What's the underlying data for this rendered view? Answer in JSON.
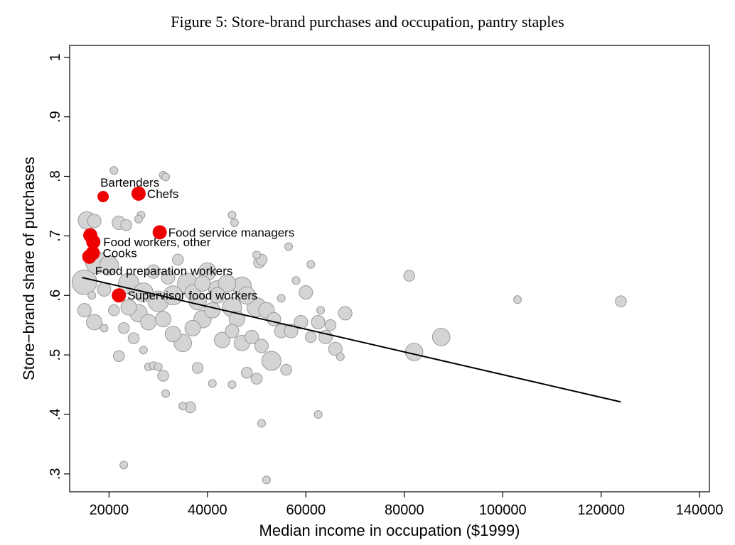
{
  "figure_title": "Figure 5: Store-brand purchases and occupation, pantry staples",
  "colors": {
    "background_points": "#d4d4d4",
    "background_stroke": "#9a9a9a",
    "highlight": "#ee0000",
    "fit_line": "#000000"
  },
  "chart_data": {
    "type": "scatter",
    "title": "Figure 5: Store-brand purchases and occupation, pantry staples",
    "xlabel": "Median income in occupation ($1999)",
    "ylabel": "Store−brand share of purchases",
    "xlim": [
      12000,
      142000
    ],
    "ylim": [
      0.27,
      1.02
    ],
    "xticks": [
      20000,
      40000,
      60000,
      80000,
      100000,
      120000,
      140000
    ],
    "xtick_labels": [
      "20000",
      "40000",
      "60000",
      "80000",
      "100000",
      "120000",
      "140000"
    ],
    "yticks": [
      0.3,
      0.4,
      0.5,
      0.6,
      0.7,
      0.8,
      0.9,
      1.0
    ],
    "ytick_labels": [
      ".3",
      ".4",
      ".5",
      ".6",
      ".7",
      ".8",
      ".9",
      "1"
    ],
    "fit_line": {
      "x": [
        14500,
        124000
      ],
      "y": [
        0.63,
        0.421
      ]
    },
    "background_points": [
      {
        "x": 15500,
        "y": 0.726,
        "w": 5
      },
      {
        "x": 17000,
        "y": 0.725,
        "w": 3
      },
      {
        "x": 21000,
        "y": 0.81,
        "w": 1
      },
      {
        "x": 22000,
        "y": 0.722,
        "w": 3
      },
      {
        "x": 23500,
        "y": 0.718,
        "w": 2
      },
      {
        "x": 26500,
        "y": 0.735,
        "w": 1
      },
      {
        "x": 26000,
        "y": 0.728,
        "w": 1
      },
      {
        "x": 31000,
        "y": 0.802,
        "w": 1
      },
      {
        "x": 31500,
        "y": 0.799,
        "w": 1
      },
      {
        "x": 45000,
        "y": 0.735,
        "w": 1
      },
      {
        "x": 45500,
        "y": 0.722,
        "w": 1
      },
      {
        "x": 50000,
        "y": 0.668,
        "w": 1
      },
      {
        "x": 50500,
        "y": 0.655,
        "w": 2
      },
      {
        "x": 51000,
        "y": 0.66,
        "w": 2
      },
      {
        "x": 56500,
        "y": 0.682,
        "w": 1
      },
      {
        "x": 61000,
        "y": 0.652,
        "w": 1
      },
      {
        "x": 15000,
        "y": 0.622,
        "w": 10
      },
      {
        "x": 17500,
        "y": 0.655,
        "w": 8
      },
      {
        "x": 20000,
        "y": 0.65,
        "w": 6
      },
      {
        "x": 24000,
        "y": 0.62,
        "w": 7
      },
      {
        "x": 27000,
        "y": 0.605,
        "w": 6
      },
      {
        "x": 30000,
        "y": 0.59,
        "w": 7
      },
      {
        "x": 33000,
        "y": 0.6,
        "w": 6
      },
      {
        "x": 36000,
        "y": 0.62,
        "w": 7
      },
      {
        "x": 38000,
        "y": 0.59,
        "w": 5
      },
      {
        "x": 40000,
        "y": 0.64,
        "w": 5
      },
      {
        "x": 42000,
        "y": 0.61,
        "w": 5
      },
      {
        "x": 44000,
        "y": 0.62,
        "w": 5
      },
      {
        "x": 45000,
        "y": 0.58,
        "w": 6
      },
      {
        "x": 47000,
        "y": 0.615,
        "w": 6
      },
      {
        "x": 48000,
        "y": 0.6,
        "w": 5
      },
      {
        "x": 50000,
        "y": 0.58,
        "w": 6
      },
      {
        "x": 52000,
        "y": 0.575,
        "w": 4
      },
      {
        "x": 26000,
        "y": 0.57,
        "w": 5
      },
      {
        "x": 28000,
        "y": 0.555,
        "w": 4
      },
      {
        "x": 31000,
        "y": 0.56,
        "w": 4
      },
      {
        "x": 33000,
        "y": 0.535,
        "w": 4
      },
      {
        "x": 35000,
        "y": 0.52,
        "w": 5
      },
      {
        "x": 37000,
        "y": 0.545,
        "w": 4
      },
      {
        "x": 39000,
        "y": 0.56,
        "w": 5
      },
      {
        "x": 41000,
        "y": 0.575,
        "w": 4
      },
      {
        "x": 43000,
        "y": 0.525,
        "w": 4
      },
      {
        "x": 45000,
        "y": 0.54,
        "w": 3
      },
      {
        "x": 47000,
        "y": 0.52,
        "w": 4
      },
      {
        "x": 49000,
        "y": 0.53,
        "w": 3
      },
      {
        "x": 51000,
        "y": 0.515,
        "w": 3
      },
      {
        "x": 53000,
        "y": 0.49,
        "w": 6
      },
      {
        "x": 55000,
        "y": 0.54,
        "w": 3
      },
      {
        "x": 57000,
        "y": 0.54,
        "w": 3
      },
      {
        "x": 59000,
        "y": 0.555,
        "w": 3
      },
      {
        "x": 61000,
        "y": 0.53,
        "w": 2
      },
      {
        "x": 62500,
        "y": 0.555,
        "w": 3
      },
      {
        "x": 64000,
        "y": 0.53,
        "w": 3
      },
      {
        "x": 65000,
        "y": 0.55,
        "w": 2
      },
      {
        "x": 66000,
        "y": 0.51,
        "w": 3
      },
      {
        "x": 68000,
        "y": 0.57,
        "w": 3
      },
      {
        "x": 63000,
        "y": 0.575,
        "w": 1
      },
      {
        "x": 60000,
        "y": 0.605,
        "w": 3
      },
      {
        "x": 58000,
        "y": 0.625,
        "w": 1
      },
      {
        "x": 55000,
        "y": 0.595,
        "w": 1
      },
      {
        "x": 15000,
        "y": 0.575,
        "w": 3
      },
      {
        "x": 17000,
        "y": 0.555,
        "w": 4
      },
      {
        "x": 19000,
        "y": 0.545,
        "w": 1
      },
      {
        "x": 16500,
        "y": 0.6,
        "w": 1
      },
      {
        "x": 21000,
        "y": 0.575,
        "w": 2
      },
      {
        "x": 22000,
        "y": 0.498,
        "w": 2
      },
      {
        "x": 23000,
        "y": 0.545,
        "w": 2
      },
      {
        "x": 25000,
        "y": 0.528,
        "w": 2
      },
      {
        "x": 27000,
        "y": 0.508,
        "w": 1
      },
      {
        "x": 28000,
        "y": 0.48,
        "w": 1
      },
      {
        "x": 29000,
        "y": 0.482,
        "w": 1
      },
      {
        "x": 30000,
        "y": 0.48,
        "w": 1
      },
      {
        "x": 31000,
        "y": 0.465,
        "w": 2
      },
      {
        "x": 31500,
        "y": 0.435,
        "w": 1
      },
      {
        "x": 35000,
        "y": 0.414,
        "w": 1
      },
      {
        "x": 36500,
        "y": 0.412,
        "w": 2
      },
      {
        "x": 38000,
        "y": 0.478,
        "w": 2
      },
      {
        "x": 41000,
        "y": 0.452,
        "w": 1
      },
      {
        "x": 45000,
        "y": 0.45,
        "w": 1
      },
      {
        "x": 48000,
        "y": 0.47,
        "w": 2
      },
      {
        "x": 50000,
        "y": 0.46,
        "w": 2
      },
      {
        "x": 56000,
        "y": 0.475,
        "w": 2
      },
      {
        "x": 51000,
        "y": 0.385,
        "w": 1
      },
      {
        "x": 62500,
        "y": 0.4,
        "w": 1
      },
      {
        "x": 52000,
        "y": 0.29,
        "w": 1
      },
      {
        "x": 23000,
        "y": 0.315,
        "w": 1
      },
      {
        "x": 81000,
        "y": 0.633,
        "w": 2
      },
      {
        "x": 82000,
        "y": 0.505,
        "w": 5
      },
      {
        "x": 87500,
        "y": 0.53,
        "w": 5
      },
      {
        "x": 103000,
        "y": 0.593,
        "w": 1
      },
      {
        "x": 124000,
        "y": 0.59,
        "w": 2
      },
      {
        "x": 67000,
        "y": 0.497,
        "w": 1
      },
      {
        "x": 32000,
        "y": 0.63,
        "w": 3
      },
      {
        "x": 34000,
        "y": 0.66,
        "w": 2
      },
      {
        "x": 29000,
        "y": 0.64,
        "w": 3
      },
      {
        "x": 37000,
        "y": 0.605,
        "w": 4
      },
      {
        "x": 42000,
        "y": 0.6,
        "w": 4
      },
      {
        "x": 39000,
        "y": 0.62,
        "w": 4
      },
      {
        "x": 46000,
        "y": 0.56,
        "w": 4
      },
      {
        "x": 53500,
        "y": 0.56,
        "w": 3
      },
      {
        "x": 24000,
        "y": 0.58,
        "w": 4
      },
      {
        "x": 19000,
        "y": 0.61,
        "w": 3
      }
    ],
    "highlighted_points": [
      {
        "label": "Bartenders",
        "x": 18800,
        "y": 0.766,
        "w": 1,
        "label_dx": -4,
        "label_dy": -14
      },
      {
        "label": "Chefs",
        "x": 26000,
        "y": 0.771,
        "w": 2,
        "label_dx": 12,
        "label_dy": 6
      },
      {
        "label": "Food service managers",
        "x": 30300,
        "y": 0.706,
        "w": 2,
        "label_dx": 12,
        "label_dy": 6
      },
      {
        "label": "Food workers, other",
        "x": 16800,
        "y": 0.69,
        "w": 2,
        "label_dx": 14,
        "label_dy": 6
      },
      {
        "label": "",
        "x": 16200,
        "y": 0.701,
        "w": 2,
        "label_dx": 0,
        "label_dy": 0
      },
      {
        "label": "Cooks",
        "x": 16700,
        "y": 0.671,
        "w": 2,
        "label_dx": 14,
        "label_dy": 6
      },
      {
        "label": "Food preparation workers",
        "x": 16000,
        "y": 0.665,
        "w": 2,
        "label_dx": 8,
        "label_dy": 26
      },
      {
        "label": "Supervisor food workers",
        "x": 22000,
        "y": 0.6,
        "w": 2,
        "label_dx": 12,
        "label_dy": 6
      }
    ]
  }
}
